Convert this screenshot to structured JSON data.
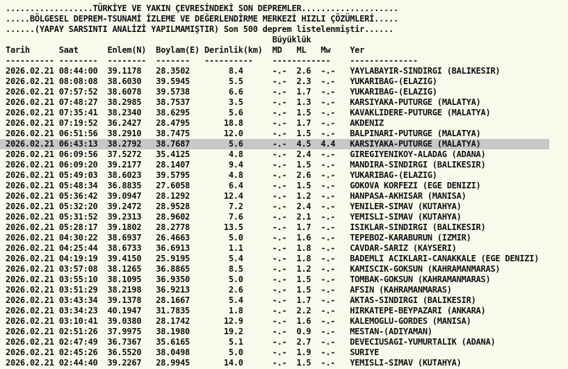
{
  "page": {
    "title_line": "..................TÜRKİYE VE YAKIN ÇEVRESİNDEKİ SON DEPREMLER....................",
    "subtitle_line": ".....BÖLGESEL DEPREM-TSUNAMİ İZLEME VE DEĞERLENDİRME MERKEZİ HIZLI ÇÖZÜMLERİ.....",
    "info_line": "......(YAPAY SARSINTI ANALİZİ YAPILMAMIŞTIR) Son 500 deprem listelenmiştir......",
    "magnitude_group_label": "Büyüklük"
  },
  "columns": {
    "date": "Tarih",
    "time": "Saat",
    "lat": "Enlem(N)",
    "lon": "Boylam(E)",
    "depth": "Derinlik(km)",
    "md": "MD",
    "ml": "ML",
    "mw": "Mw",
    "location": "Yer"
  },
  "colors": {
    "background": "#fafaec",
    "text": "#101014",
    "highlight_row": "#c8c8c8"
  },
  "rows": [
    {
      "date": "2026.02.21",
      "time": "08:44:00",
      "lat": "39.1178",
      "lon": "28.3502",
      "depth": "8.4",
      "md": "-.-",
      "ml": "2.6",
      "mw": "-.-",
      "location": "YAYLABAYIR-SINDIRGI (BALIKESIR)",
      "highlighted": false
    },
    {
      "date": "2026.02.21",
      "time": "08:08:08",
      "lat": "38.6030",
      "lon": "39.5945",
      "depth": "5.5",
      "md": "-.-",
      "ml": "2.3",
      "mw": "-.-",
      "location": "YUKARIBAG-(ELAZIG)",
      "highlighted": false
    },
    {
      "date": "2026.02.21",
      "time": "07:57:52",
      "lat": "38.6078",
      "lon": "39.5738",
      "depth": "6.6",
      "md": "-.-",
      "ml": "1.7",
      "mw": "-.-",
      "location": "YUKARIBAG-(ELAZIG)",
      "highlighted": false
    },
    {
      "date": "2026.02.21",
      "time": "07:48:27",
      "lat": "38.2985",
      "lon": "38.7537",
      "depth": "3.5",
      "md": "-.-",
      "ml": "1.3",
      "mw": "-.-",
      "location": "KARSIYAKA-PUTURGE (MALATYA)",
      "highlighted": false
    },
    {
      "date": "2026.02.21",
      "time": "07:35:41",
      "lat": "38.2340",
      "lon": "38.6295",
      "depth": "5.6",
      "md": "-.-",
      "ml": "1.5",
      "mw": "-.-",
      "location": "KAVAKLIDERE-PUTURGE (MALATYA)",
      "highlighted": false
    },
    {
      "date": "2026.02.21",
      "time": "07:19:52",
      "lat": "36.2427",
      "lon": "28.4795",
      "depth": "18.8",
      "md": "-.-",
      "ml": "1.7",
      "mw": "-.-",
      "location": "AKDENIZ",
      "highlighted": false
    },
    {
      "date": "2026.02.21",
      "time": "06:51:56",
      "lat": "38.2910",
      "lon": "38.7475",
      "depth": "12.0",
      "md": "-.-",
      "ml": "1.5",
      "mw": "-.-",
      "location": "BALPINARI-PUTURGE (MALATYA)",
      "highlighted": false
    },
    {
      "date": "2026.02.21",
      "time": "06:43:13",
      "lat": "38.2792",
      "lon": "38.7687",
      "depth": "5.6",
      "md": "-.-",
      "ml": "4.5",
      "mw": "4.4",
      "location": "KARSIYAKA-PUTURGE (MALATYA)",
      "highlighted": true
    },
    {
      "date": "2026.02.21",
      "time": "06:09:56",
      "lat": "37.5272",
      "lon": "35.4125",
      "depth": "4.8",
      "md": "-.-",
      "ml": "2.4",
      "mw": "-.-",
      "location": "GIREGIYENIKOY-ALADAG (ADANA)",
      "highlighted": false
    },
    {
      "date": "2026.02.21",
      "time": "06:09:20",
      "lat": "39.2177",
      "lon": "28.1407",
      "depth": "9.4",
      "md": "-.-",
      "ml": "1.5",
      "mw": "-.-",
      "location": "MANDIRA-SINDIRGI (BALIKESIR)",
      "highlighted": false
    },
    {
      "date": "2026.02.21",
      "time": "05:49:03",
      "lat": "38.6023",
      "lon": "39.5795",
      "depth": "4.8",
      "md": "-.-",
      "ml": "2.6",
      "mw": "-.-",
      "location": "YUKARIBAG-(ELAZIG)",
      "highlighted": false
    },
    {
      "date": "2026.02.21",
      "time": "05:48:34",
      "lat": "36.8835",
      "lon": "27.6058",
      "depth": "6.4",
      "md": "-.-",
      "ml": "1.5",
      "mw": "-.-",
      "location": "GOKOVA KORFEZI (EGE DENIZI)",
      "highlighted": false
    },
    {
      "date": "2026.02.21",
      "time": "05:36:42",
      "lat": "39.0947",
      "lon": "28.1292",
      "depth": "12.4",
      "md": "-.-",
      "ml": "1.2",
      "mw": "-.-",
      "location": "HANPASA-AKHISAR (MANISA)",
      "highlighted": false
    },
    {
      "date": "2026.02.21",
      "time": "05:32:20",
      "lat": "39.2472",
      "lon": "28.9528",
      "depth": "7.2",
      "md": "-.-",
      "ml": "2.4",
      "mw": "-.-",
      "location": "YENILER-SIMAV (KUTAHYA)",
      "highlighted": false
    },
    {
      "date": "2026.02.21",
      "time": "05:31:52",
      "lat": "39.2313",
      "lon": "28.9602",
      "depth": "7.6",
      "md": "-.-",
      "ml": "2.1",
      "mw": "-.-",
      "location": "YEMISLI-SIMAV (KUTAHYA)",
      "highlighted": false
    },
    {
      "date": "2026.02.21",
      "time": "05:28:17",
      "lat": "39.1802",
      "lon": "28.2778",
      "depth": "13.5",
      "md": "-.-",
      "ml": "1.7",
      "mw": "-.-",
      "location": "ISIKLAR-SINDIRGI (BALIKESIR)",
      "highlighted": false
    },
    {
      "date": "2026.02.21",
      "time": "04:30:22",
      "lat": "38.6937",
      "lon": "26.4663",
      "depth": "5.0",
      "md": "-.-",
      "ml": "1.6",
      "mw": "-.-",
      "location": "TEPEBOZ-KARABURUN (IZMIR)",
      "highlighted": false
    },
    {
      "date": "2026.02.21",
      "time": "04:25:44",
      "lat": "38.6733",
      "lon": "36.6913",
      "depth": "1.1",
      "md": "-.-",
      "ml": "1.8",
      "mw": "-.-",
      "location": "CAVDAR-SARIZ (KAYSERI)",
      "highlighted": false
    },
    {
      "date": "2026.02.21",
      "time": "04:19:19",
      "lat": "39.4150",
      "lon": "25.9195",
      "depth": "5.4",
      "md": "-.-",
      "ml": "1.8",
      "mw": "-.-",
      "location": "BADEMLI ACIKLARI-CANAKKALE (EGE DENIZI)",
      "highlighted": false
    },
    {
      "date": "2026.02.21",
      "time": "03:57:08",
      "lat": "38.1265",
      "lon": "36.8865",
      "depth": "8.5",
      "md": "-.-",
      "ml": "1.2",
      "mw": "-.-",
      "location": "KAMISCIK-GOKSUN (KAHRAMANMARAS)",
      "highlighted": false
    },
    {
      "date": "2026.02.21",
      "time": "03:55:10",
      "lat": "38.1095",
      "lon": "36.9350",
      "depth": "5.0",
      "md": "-.-",
      "ml": "1.5",
      "mw": "-.-",
      "location": "TOMBAK-GOKSUN (KAHRAMANMARAS)",
      "highlighted": false
    },
    {
      "date": "2026.02.21",
      "time": "03:51:29",
      "lat": "38.2198",
      "lon": "36.9213",
      "depth": "2.6",
      "md": "-.-",
      "ml": "1.5",
      "mw": "-.-",
      "location": "AFSIN (KAHRAMANMARAS)",
      "highlighted": false
    },
    {
      "date": "2026.02.21",
      "time": "03:43:34",
      "lat": "39.1378",
      "lon": "28.1667",
      "depth": "5.4",
      "md": "-.-",
      "ml": "1.7",
      "mw": "-.-",
      "location": "AKTAS-SINDIRGI (BALIKESIR)",
      "highlighted": false
    },
    {
      "date": "2026.02.21",
      "time": "03:34:23",
      "lat": "40.1947",
      "lon": "31.7835",
      "depth": "1.8",
      "md": "-.-",
      "ml": "2.2",
      "mw": "-.-",
      "location": "HIRKATEPE-BEYPAZARI (ANKARA)",
      "highlighted": false
    },
    {
      "date": "2026.02.21",
      "time": "03:10:41",
      "lat": "39.0380",
      "lon": "28.1742",
      "depth": "12.9",
      "md": "-.-",
      "ml": "1.6",
      "mw": "-.-",
      "location": "KALEMOGLU-GORDES (MANISA)",
      "highlighted": false
    },
    {
      "date": "2026.02.21",
      "time": "02:51:26",
      "lat": "37.9975",
      "lon": "38.1980",
      "depth": "19.2",
      "md": "-.-",
      "ml": "0.9",
      "mw": "-.-",
      "location": "MESTAN-(ADIYAMAN)",
      "highlighted": false
    },
    {
      "date": "2026.02.21",
      "time": "02:47:49",
      "lat": "36.7367",
      "lon": "35.6165",
      "depth": "5.1",
      "md": "-.-",
      "ml": "2.7",
      "mw": "-.-",
      "location": "DEVECIUSAGI-YUMURTALIK (ADANA)",
      "highlighted": false
    },
    {
      "date": "2026.02.21",
      "time": "02:45:26",
      "lat": "36.5520",
      "lon": "38.0498",
      "depth": "5.0",
      "md": "-.-",
      "ml": "1.9",
      "mw": "-.-",
      "location": "SURIYE",
      "highlighted": false
    },
    {
      "date": "2026.02.21",
      "time": "02:44:40",
      "lat": "39.2267",
      "lon": "28.9945",
      "depth": "14.0",
      "md": "-.-",
      "ml": "1.5",
      "mw": "-.-",
      "location": "YEMISLI-SIMAV (KUTAHYA)",
      "highlighted": false
    }
  ]
}
